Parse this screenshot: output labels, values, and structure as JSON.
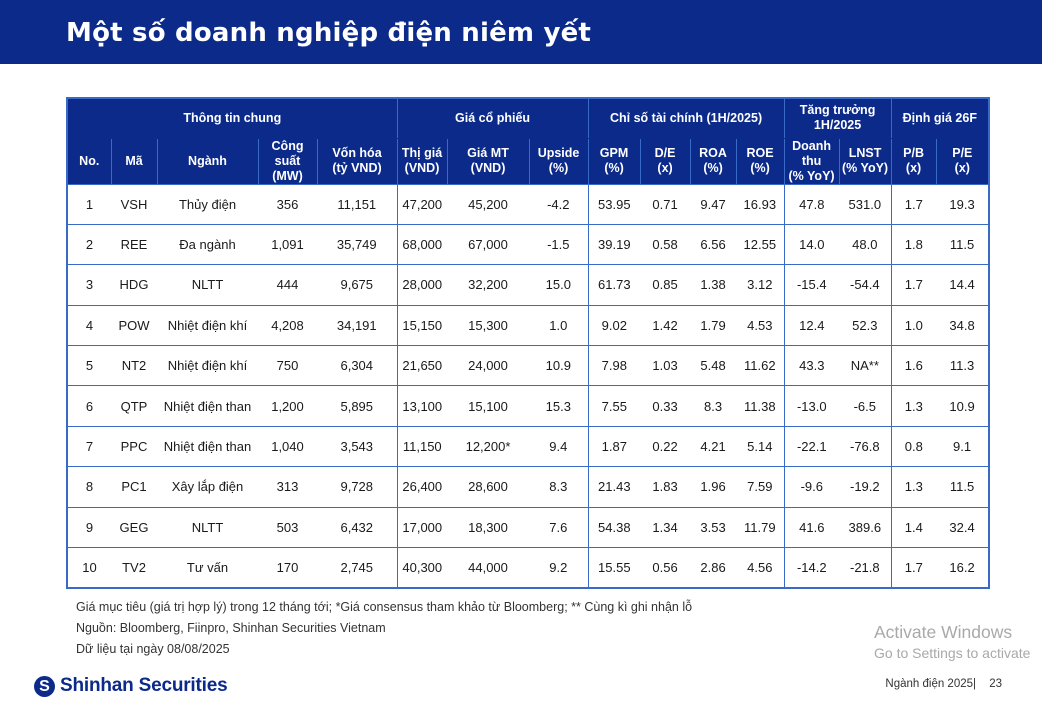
{
  "page": {
    "title": "Một số doanh nghiệp điện niêm yết"
  },
  "table": {
    "groups": [
      {
        "label": "Thông tin chung",
        "span": 5
      },
      {
        "label": "Giá cổ phiếu",
        "span": 3
      },
      {
        "label": "Chỉ số tài chính (1H/2025)",
        "span": 4
      },
      {
        "label": "Tăng trưởng 1H/2025",
        "span": 2
      },
      {
        "label": "Định giá 26F",
        "span": 2
      }
    ],
    "columns": [
      "No.",
      "Mã",
      "Ngành",
      "Công suất (MW)",
      "Vốn hóa (tỷ VND)",
      "Thị giá (VND)",
      "Giá MT (VND)",
      "Upside (%)",
      "GPM (%)",
      "D/E (x)",
      "ROA (%)",
      "ROE (%)",
      "Doanh thu (% YoY)",
      "LNST (% YoY)",
      "P/B (x)",
      "P/E (x)"
    ],
    "rows": [
      [
        "1",
        "VSH",
        "Thủy điện",
        "356",
        "11,151",
        "47,200",
        "45,200",
        "-4.2",
        "53.95",
        "0.71",
        "9.47",
        "16.93",
        "47.8",
        "531.0",
        "1.7",
        "19.3"
      ],
      [
        "2",
        "REE",
        "Đa ngành",
        "1,091",
        "35,749",
        "68,000",
        "67,000",
        "-1.5",
        "39.19",
        "0.58",
        "6.56",
        "12.55",
        "14.0",
        "48.0",
        "1.8",
        "11.5"
      ],
      [
        "3",
        "HDG",
        "NLTT",
        "444",
        "9,675",
        "28,000",
        "32,200",
        "15.0",
        "61.73",
        "0.85",
        "1.38",
        "3.12",
        "-15.4",
        "-54.4",
        "1.7",
        "14.4"
      ],
      [
        "4",
        "POW",
        "Nhiệt điện khí",
        "4,208",
        "34,191",
        "15,150",
        "15,300",
        "1.0",
        "9.02",
        "1.42",
        "1.79",
        "4.53",
        "12.4",
        "52.3",
        "1.0",
        "34.8"
      ],
      [
        "5",
        "NT2",
        "Nhiệt điện khí",
        "750",
        "6,304",
        "21,650",
        "24,000",
        "10.9",
        "7.98",
        "1.03",
        "5.48",
        "11.62",
        "43.3",
        "NA**",
        "1.6",
        "11.3"
      ],
      [
        "6",
        "QTP",
        "Nhiệt điện than",
        "1,200",
        "5,895",
        "13,100",
        "15,100",
        "15.3",
        "7.55",
        "0.33",
        "8.3",
        "11.38",
        "-13.0",
        "-6.5",
        "1.3",
        "10.9"
      ],
      [
        "7",
        "PPC",
        "Nhiệt điện than",
        "1,040",
        "3,543",
        "11,150",
        "12,200*",
        "9.4",
        "1.87",
        "0.22",
        "4.21",
        "5.14",
        "-22.1",
        "-76.8",
        "0.8",
        "9.1"
      ],
      [
        "8",
        "PC1",
        "Xây lắp điện",
        "313",
        "9,728",
        "26,400",
        "28,600",
        "8.3",
        "21.43",
        "1.83",
        "1.96",
        "7.59",
        "-9.6",
        "-19.2",
        "1.3",
        "11.5"
      ],
      [
        "9",
        "GEG",
        "NLTT",
        "503",
        "6,432",
        "17,000",
        "18,300",
        "7.6",
        "54.38",
        "1.34",
        "3.53",
        "11.79",
        "41.6",
        "389.6",
        "1.4",
        "32.4"
      ],
      [
        "10",
        "TV2",
        "Tư vấn",
        "170",
        "2,745",
        "40,300",
        "44,000",
        "9.2",
        "15.55",
        "0.56",
        "2.86",
        "4.56",
        "-14.2",
        "-21.8",
        "1.7",
        "16.2"
      ]
    ]
  },
  "notes": [
    "Giá mục tiêu (giá trị hợp lý) trong 12 tháng tới; *Giá consensus tham khảo từ Bloomberg; ** Cùng kì ghi nhận lỗ",
    "Nguồn: Bloomberg, Fiinpro, Shinhan Securities Vietnam",
    "Dữ liệu tại ngày 08/08/2025"
  ],
  "footer": {
    "logo_text": "Shinhan Securities",
    "logo_mark": "S",
    "section": "Ngành điện 2025|",
    "page_number": "23"
  },
  "watermark": {
    "line1": "Activate Windows",
    "line2": "Go to Settings to activate"
  },
  "colors": {
    "header_bg": "#0b2a8a",
    "border": "#3a6ac8",
    "text": "#1a1a1a"
  }
}
